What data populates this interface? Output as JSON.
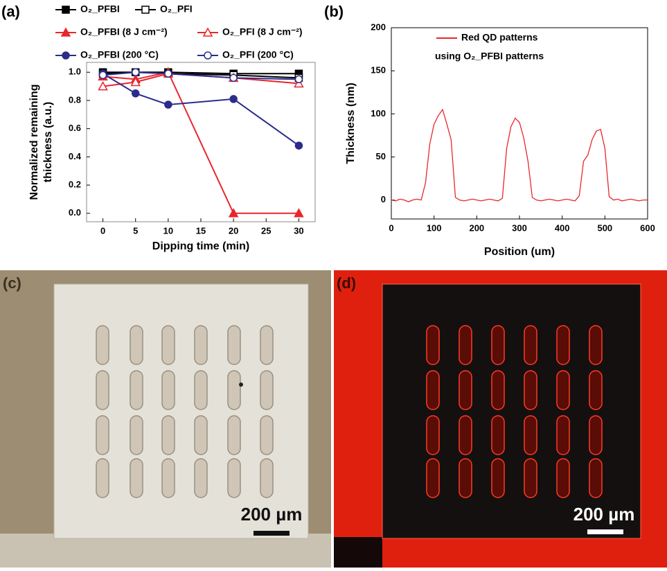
{
  "chart_data": [
    {
      "type": "line",
      "panel": "(a)",
      "x_label": "Dipping time (min)",
      "y_label": "Normalized remaining thickness (a.u.)",
      "x": [
        0,
        5,
        10,
        20,
        30
      ],
      "xlim": [
        -2.5,
        32.5
      ],
      "xticks": [
        0,
        5,
        10,
        15,
        20,
        25,
        30
      ],
      "ylim": [
        -0.06,
        1.07
      ],
      "yticks": [
        {
          "value": 0,
          "label": "0.0"
        },
        {
          "value": 0.2,
          "label": "0.2"
        },
        {
          "value": 0.4,
          "label": "0.4"
        },
        {
          "value": 0.6,
          "label": "0.6"
        },
        {
          "value": 0.8,
          "label": "0.8"
        },
        {
          "value": 1,
          "label": "1.0"
        }
      ],
      "series": [
        {
          "name": "O₂_PFBI",
          "color": "#000000",
          "marker": "square",
          "filled": true,
          "values": [
            1.0,
            1.0,
            1.0,
            0.99,
            0.99
          ]
        },
        {
          "name": "O₂_PFI",
          "color": "#000000",
          "marker": "square",
          "filled": false,
          "values": [
            0.99,
            1.0,
            0.99,
            0.98,
            0.96
          ]
        },
        {
          "name": "O₂_PFBI (8 J cm⁻²)",
          "color": "#e8262c",
          "marker": "triangle",
          "filled": true,
          "values": [
            0.97,
            0.95,
            1.0,
            0.0,
            0.0
          ]
        },
        {
          "name": "O₂_PFI (8 J cm⁻²)",
          "color": "#e8262c",
          "marker": "triangle",
          "filled": false,
          "values": [
            0.9,
            0.93,
            0.99,
            0.96,
            0.92
          ]
        },
        {
          "name": "O₂_PFBI (200 °C)",
          "color": "#2b2c8c",
          "marker": "circle",
          "filled": true,
          "values": [
            0.99,
            0.85,
            0.77,
            0.81,
            0.48
          ]
        },
        {
          "name": "O₂_PFI (200 °C)",
          "color": "#2b2c8c",
          "marker": "circle",
          "filled": false,
          "values": [
            0.98,
            1.0,
            0.99,
            0.96,
            0.95
          ]
        }
      ]
    },
    {
      "type": "line",
      "panel": "(b)",
      "x_label": "Position (um)",
      "y_label": "Thickness (nm)",
      "x": [
        0,
        10,
        20,
        30,
        40,
        50,
        60,
        70,
        80,
        90,
        100,
        110,
        120,
        130,
        140,
        150,
        160,
        170,
        180,
        190,
        200,
        210,
        220,
        230,
        240,
        250,
        260,
        270,
        280,
        290,
        300,
        310,
        320,
        330,
        340,
        350,
        360,
        370,
        380,
        390,
        400,
        410,
        420,
        430,
        440,
        450,
        460,
        470,
        480,
        490,
        500,
        510,
        520,
        530,
        540,
        550,
        560,
        570,
        580,
        590,
        600
      ],
      "xlim": [
        0,
        600
      ],
      "xticks": [
        0,
        100,
        200,
        300,
        400,
        500,
        600
      ],
      "ylim": [
        -22,
        200
      ],
      "yticks": [
        0,
        50,
        100,
        150,
        200
      ],
      "series": [
        {
          "name": "Red QD patterns",
          "color": "#e8262c",
          "values": [
            0,
            -1,
            1,
            0,
            -2,
            0,
            1,
            0,
            20,
            65,
            88,
            98,
            105,
            88,
            70,
            3,
            0,
            -1,
            0,
            1,
            0,
            -1,
            0,
            1,
            0,
            -1,
            2,
            60,
            85,
            95,
            90,
            72,
            45,
            3,
            0,
            -1,
            0,
            1,
            0,
            -1,
            0,
            1,
            0,
            -1,
            5,
            45,
            52,
            70,
            80,
            82,
            60,
            4,
            0,
            1,
            -1,
            0,
            1,
            0,
            -1,
            0,
            0
          ]
        }
      ],
      "legend_note": "using O₂_PFBI patterns"
    }
  ],
  "images": [
    {
      "panel": "(c)",
      "scale_label": "200 µm"
    },
    {
      "panel": "(d)",
      "scale_label": "200 µm"
    }
  ]
}
